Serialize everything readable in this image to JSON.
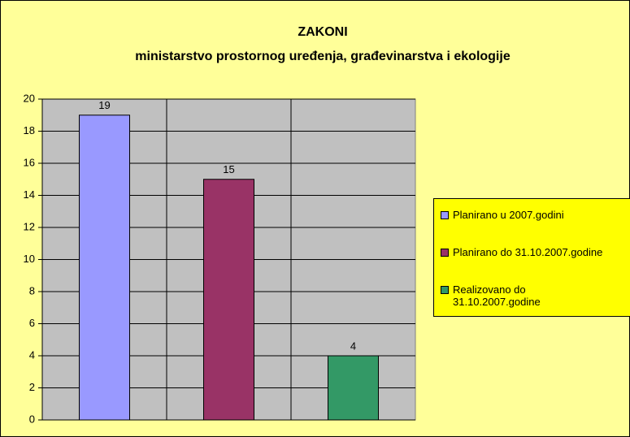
{
  "chart_data": {
    "type": "bar",
    "title": "ZAKONI",
    "subtitle": "ministarstvo prostornog uređenja, građevinarstva i ekologije",
    "categories": [
      "Planirano u 2007.godini",
      "Planirano do 31.10.2007.godine",
      "Realizovano do 31.10.2007.godine"
    ],
    "values": [
      19,
      15,
      4
    ],
    "colors": [
      "#9999ff",
      "#993366",
      "#339966"
    ],
    "ylim": [
      0,
      20
    ],
    "yticks": [
      0,
      2,
      4,
      6,
      8,
      10,
      12,
      14,
      16,
      18,
      20
    ],
    "grid": true,
    "legend": "right"
  }
}
